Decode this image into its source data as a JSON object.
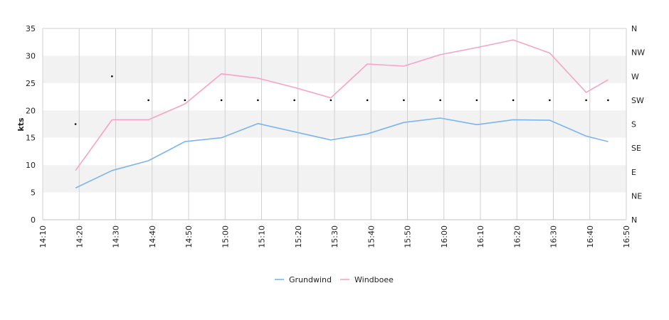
{
  "chart_data": {
    "type": "line",
    "ylabel": "kts",
    "ylim": [
      0,
      35
    ],
    "y_ticks": [
      0,
      5,
      10,
      15,
      20,
      25,
      30,
      35
    ],
    "x_range": [
      "14:10",
      "16:50"
    ],
    "x_ticks": [
      "14:10",
      "14:20",
      "14:30",
      "14:40",
      "14:50",
      "15:00",
      "15:10",
      "15:20",
      "15:30",
      "15:40",
      "15:50",
      "16:00",
      "16:10",
      "16:20",
      "16:30",
      "16:40",
      "16:50"
    ],
    "right_axis_labels": [
      "N",
      "NE",
      "E",
      "SE",
      "S",
      "SW",
      "W",
      "NW",
      "N"
    ],
    "grid": true,
    "legend_position": "bottom",
    "x": [
      "14:19",
      "14:29",
      "14:39",
      "14:49",
      "14:59",
      "15:09",
      "15:19",
      "15:29",
      "15:39",
      "15:49",
      "15:59",
      "16:09",
      "16:19",
      "16:29",
      "16:39",
      "16:45"
    ],
    "series": [
      {
        "name": "Grundwind",
        "color": "#7cb5ec",
        "values": [
          5.8,
          9.0,
          10.8,
          14.3,
          15.0,
          17.6,
          16.1,
          14.6,
          15.7,
          17.8,
          18.6,
          17.4,
          18.3,
          18.2,
          15.3,
          14.3
        ]
      },
      {
        "name": "Windboee",
        "color": "#f7a3c7",
        "values": [
          9.0,
          18.3,
          18.3,
          21.2,
          26.7,
          25.9,
          24.2,
          22.3,
          28.5,
          28.1,
          30.2,
          31.5,
          32.9,
          30.5,
          23.3,
          25.6
        ]
      }
    ],
    "direction_markers": [
      {
        "x": "14:19",
        "dir": "S"
      },
      {
        "x": "14:29",
        "dir": "W"
      },
      {
        "x": "14:39",
        "dir": "SW"
      },
      {
        "x": "14:49",
        "dir": "SW"
      },
      {
        "x": "14:59",
        "dir": "SW"
      },
      {
        "x": "15:09",
        "dir": "SW"
      },
      {
        "x": "15:19",
        "dir": "SW"
      },
      {
        "x": "15:29",
        "dir": "SW"
      },
      {
        "x": "15:39",
        "dir": "SW"
      },
      {
        "x": "15:49",
        "dir": "SW"
      },
      {
        "x": "15:59",
        "dir": "SW"
      },
      {
        "x": "16:09",
        "dir": "SW"
      },
      {
        "x": "16:19",
        "dir": "SW"
      },
      {
        "x": "16:29",
        "dir": "SW"
      },
      {
        "x": "16:39",
        "dir": "SW"
      },
      {
        "x": "16:45",
        "dir": "SW"
      }
    ],
    "band_color": "#f2f2f2",
    "marker_color": "#000000"
  }
}
